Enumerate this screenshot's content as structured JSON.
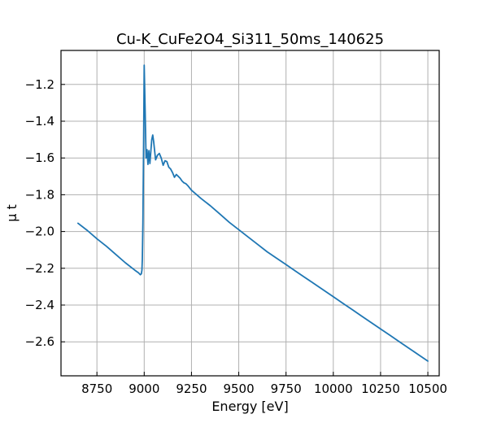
{
  "chart_data": {
    "type": "line",
    "title": "Cu-K_CuFe2O4_Si311_50ms_140625",
    "xlabel": "Energy [eV]",
    "ylabel": "μ t",
    "xlim": [
      8560,
      10560
    ],
    "ylim": [
      -2.785,
      -1.015
    ],
    "grid": true,
    "xticks": [
      8750,
      9000,
      9250,
      9500,
      9750,
      10000,
      10250,
      10500
    ],
    "yticks": [
      -1.2,
      -1.4,
      -1.6,
      -1.8,
      -2.0,
      -2.2,
      -2.4,
      -2.6
    ],
    "xtick_labels": [
      "8750",
      "9000",
      "9250",
      "9500",
      "9750",
      "10000",
      "10250",
      "10500"
    ],
    "ytick_labels": [
      "−1.2",
      "−1.4",
      "−1.6",
      "−1.8",
      "−2.0",
      "−2.2",
      "−2.4",
      "−2.6"
    ],
    "series": [
      {
        "color": "#1f77b4",
        "x": [
          8650,
          8700,
          8750,
          8800,
          8850,
          8900,
          8950,
          8970,
          8980,
          8985,
          8988,
          8990,
          8993,
          8995,
          8997,
          9000,
          9005,
          9010,
          9015,
          9020,
          9025,
          9030,
          9040,
          9045,
          9050,
          9060,
          9070,
          9080,
          9090,
          9100,
          9110,
          9120,
          9130,
          9140,
          9150,
          9160,
          9170,
          9180,
          9190,
          9200,
          9210,
          9220,
          9230,
          9250,
          9300,
          9350,
          9400,
          9450,
          9500,
          9550,
          9600,
          9650,
          9700,
          9750,
          9800,
          9850,
          9900,
          9950,
          10000,
          10050,
          10100,
          10150,
          10200,
          10250,
          10300,
          10350,
          10400,
          10450,
          10500
        ],
        "y": [
          -1.955,
          -1.995,
          -2.04,
          -2.08,
          -2.125,
          -2.17,
          -2.21,
          -2.225,
          -2.235,
          -2.23,
          -2.21,
          -2.15,
          -1.95,
          -1.75,
          -1.5,
          -1.095,
          -1.35,
          -1.6,
          -1.555,
          -1.635,
          -1.56,
          -1.63,
          -1.5,
          -1.475,
          -1.51,
          -1.61,
          -1.585,
          -1.575,
          -1.6,
          -1.64,
          -1.615,
          -1.62,
          -1.65,
          -1.66,
          -1.68,
          -1.705,
          -1.69,
          -1.7,
          -1.71,
          -1.725,
          -1.735,
          -1.74,
          -1.75,
          -1.775,
          -1.82,
          -1.86,
          -1.905,
          -1.95,
          -1.99,
          -2.03,
          -2.07,
          -2.11,
          -2.145,
          -2.18,
          -2.215,
          -2.25,
          -2.285,
          -2.32,
          -2.355,
          -2.39,
          -2.425,
          -2.46,
          -2.495,
          -2.53,
          -2.565,
          -2.6,
          -2.635,
          -2.67,
          -2.705
        ]
      }
    ]
  }
}
